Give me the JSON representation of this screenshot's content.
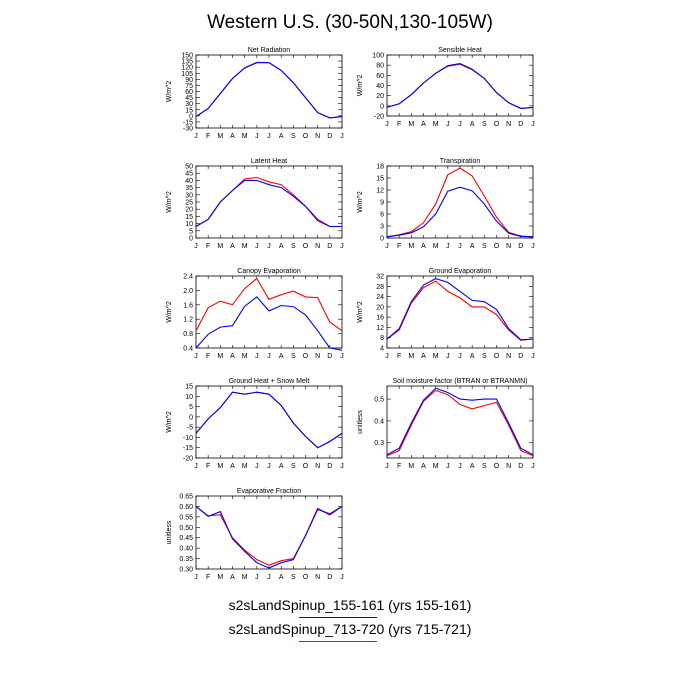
{
  "title": "Western U.S. (30-50N,130-105W)",
  "months": [
    "J",
    "F",
    "M",
    "A",
    "M",
    "J",
    "J",
    "A",
    "S",
    "O",
    "N",
    "D",
    "J"
  ],
  "colors": {
    "run1": "#0000ff",
    "run2": "#ff0000"
  },
  "legend": [
    {
      "label": "s2sLandSpinup_155-161 (yrs 155-161)",
      "color": "#0000ff"
    },
    {
      "label": "s2sLandSpinup_713-720 (yrs 715-721)",
      "color": "#ff0000"
    }
  ],
  "chart_data": [
    {
      "type": "line",
      "title": "Net Radiation",
      "ylabel": "W/m^2",
      "ylim": [
        -30,
        150
      ],
      "yticks": [
        -30,
        -15,
        0,
        15,
        30,
        45,
        60,
        75,
        90,
        105,
        120,
        135,
        150
      ],
      "series": [
        {
          "name": "s2sLandSpinup_155-161",
          "values": [
            -2,
            18,
            55,
            92,
            118,
            131,
            131,
            112,
            82,
            45,
            8,
            -5,
            -2
          ]
        },
        {
          "name": "s2sLandSpinup_713-720",
          "values": [
            -2,
            18,
            55,
            92,
            118,
            132,
            131,
            112,
            82,
            45,
            8,
            -5,
            -2
          ]
        }
      ]
    },
    {
      "type": "line",
      "title": "Sensible Heat",
      "ylabel": "W/m^2",
      "ylim": [
        -20,
        100
      ],
      "yticks": [
        -20,
        0,
        20,
        40,
        60,
        80,
        100
      ],
      "series": [
        {
          "name": "s2sLandSpinup_155-161",
          "values": [
            -3,
            4,
            22,
            45,
            64,
            79,
            83,
            72,
            54,
            26,
            6,
            -5,
            -3
          ]
        },
        {
          "name": "s2sLandSpinup_713-720",
          "values": [
            -3,
            4,
            22,
            45,
            64,
            78,
            82,
            71,
            54,
            26,
            6,
            -5,
            -3
          ]
        }
      ]
    },
    {
      "type": "line",
      "title": "Latent Heat",
      "ylabel": "W/m^2",
      "ylim": [
        0,
        50
      ],
      "yticks": [
        0,
        5,
        10,
        15,
        20,
        25,
        30,
        35,
        40,
        45,
        50
      ],
      "series": [
        {
          "name": "s2sLandSpinup_155-161",
          "values": [
            8,
            13,
            25,
            33,
            40,
            40,
            37,
            35,
            29,
            22,
            12,
            8,
            8
          ]
        },
        {
          "name": "s2sLandSpinup_713-720",
          "values": [
            8,
            13,
            25,
            33,
            41,
            42,
            39,
            37,
            30,
            22,
            13,
            8,
            8
          ]
        }
      ]
    },
    {
      "type": "line",
      "title": "Transpiration",
      "ylabel": "W/m^2",
      "ylim": [
        0,
        18
      ],
      "yticks": [
        0,
        3,
        6,
        9,
        12,
        15,
        18
      ],
      "series": [
        {
          "name": "s2sLandSpinup_155-161",
          "values": [
            0.3,
            0.7,
            1.3,
            2.8,
            6,
            11.7,
            12.7,
            11.8,
            8.5,
            4.2,
            1.2,
            0.4,
            0.3
          ]
        },
        {
          "name": "s2sLandSpinup_713-720",
          "values": [
            0.3,
            0.8,
            1.6,
            3.8,
            8.5,
            15.8,
            17.5,
            15.5,
            10.5,
            5.2,
            1.4,
            0.5,
            0.3
          ]
        }
      ]
    },
    {
      "type": "line",
      "title": "Canopy Evaporation",
      "ylabel": "W/m^2",
      "ylim": [
        0.4,
        2.4
      ],
      "yticks": [
        0.4,
        0.8,
        1.2,
        1.6,
        2.0,
        2.4
      ],
      "series": [
        {
          "name": "s2sLandSpinup_155-161",
          "values": [
            0.4,
            0.78,
            0.98,
            1.02,
            1.56,
            1.82,
            1.43,
            1.58,
            1.55,
            1.32,
            0.88,
            0.4,
            0.34
          ]
        },
        {
          "name": "s2sLandSpinup_713-720",
          "values": [
            0.88,
            1.52,
            1.7,
            1.6,
            2.05,
            2.33,
            1.75,
            1.88,
            1.98,
            1.82,
            1.8,
            1.12,
            0.88
          ]
        }
      ]
    },
    {
      "type": "line",
      "title": "Ground Evaporation",
      "ylabel": "W/m^2",
      "ylim": [
        4,
        32
      ],
      "yticks": [
        4,
        8,
        12,
        16,
        20,
        24,
        28,
        32
      ],
      "series": [
        {
          "name": "s2sLandSpinup_155-161",
          "values": [
            7.5,
            11.5,
            22,
            28.5,
            31,
            29.5,
            26,
            22.5,
            22,
            19,
            11.5,
            7.2,
            7.5
          ]
        },
        {
          "name": "s2sLandSpinup_713-720",
          "values": [
            7.5,
            11,
            21.5,
            27.5,
            30,
            26,
            23.5,
            20,
            20,
            17,
            11,
            7,
            7.5
          ]
        }
      ]
    },
    {
      "type": "line",
      "title": "Ground Heat + Snow Melt",
      "ylabel": "W/m^2",
      "ylim": [
        -20,
        15
      ],
      "yticks": [
        -20,
        -15,
        -10,
        -5,
        0,
        5,
        10,
        15
      ],
      "series": [
        {
          "name": "s2sLandSpinup_155-161",
          "values": [
            -8,
            -1,
            4.5,
            12,
            11,
            12,
            11,
            5.5,
            -3,
            -9.5,
            -15,
            -12,
            -8
          ]
        },
        {
          "name": "s2sLandSpinup_713-720",
          "values": [
            -8,
            -1,
            4.5,
            12,
            11,
            12,
            11,
            5.5,
            -3,
            -9.5,
            -15,
            -12,
            -8
          ]
        }
      ]
    },
    {
      "type": "line",
      "title": "Soil moisture factor (BTRAN or BTRANMN)",
      "ylabel": "unitless",
      "ylim": [
        0.23,
        0.56
      ],
      "yticks": [
        0.3,
        0.4,
        0.5
      ],
      "series": [
        {
          "name": "s2sLandSpinup_155-161",
          "values": [
            0.245,
            0.275,
            0.39,
            0.495,
            0.55,
            0.53,
            0.5,
            0.495,
            0.5,
            0.5,
            0.39,
            0.275,
            0.245
          ]
        },
        {
          "name": "s2sLandSpinup_713-720",
          "values": [
            0.24,
            0.265,
            0.38,
            0.49,
            0.54,
            0.52,
            0.475,
            0.455,
            0.47,
            0.485,
            0.38,
            0.265,
            0.24
          ]
        }
      ]
    },
    {
      "type": "line",
      "title": "Evaporative Fraction",
      "ylabel": "unitless",
      "ylim": [
        0.3,
        0.65
      ],
      "yticks": [
        0.3,
        0.35,
        0.4,
        0.45,
        0.5,
        0.55,
        0.6,
        0.65
      ],
      "series": [
        {
          "name": "s2sLandSpinup_155-161",
          "values": [
            0.6,
            0.552,
            0.575,
            0.445,
            0.385,
            0.33,
            0.305,
            0.33,
            0.345,
            0.46,
            0.59,
            0.56,
            0.6
          ]
        },
        {
          "name": "s2sLandSpinup_713-720",
          "values": [
            0.6,
            0.555,
            0.56,
            0.45,
            0.39,
            0.345,
            0.318,
            0.34,
            0.35,
            0.46,
            0.585,
            0.565,
            0.6
          ]
        }
      ]
    }
  ]
}
